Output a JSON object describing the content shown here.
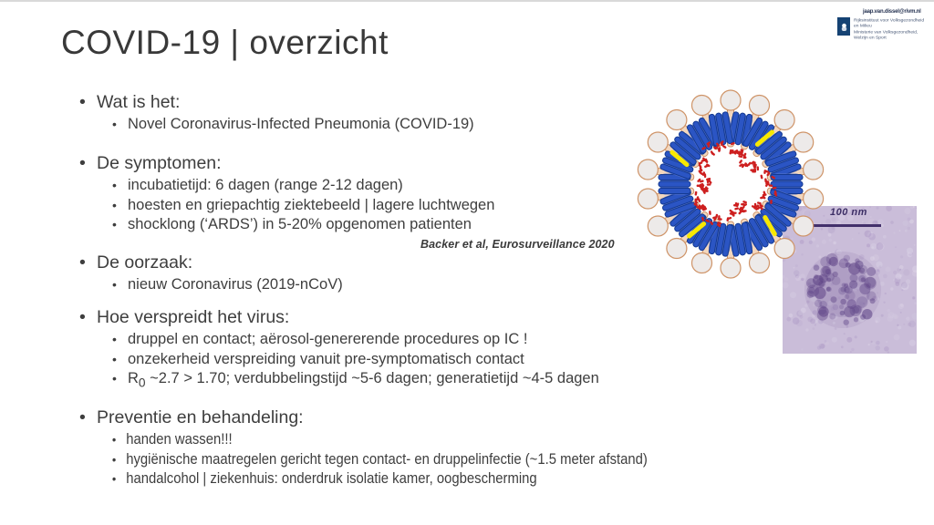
{
  "slide": {
    "title": "COVID-19 | overzicht",
    "citation": "Backer et al, Eurosurveillance 2020",
    "sections": [
      {
        "heading": "Wat is het:",
        "items": [
          "Novel Coronavirus-Infected Pneumonia (COVID-19)"
        ]
      },
      {
        "heading": "De symptomen:",
        "items": [
          "incubatietijd: 6 dagen (range 2-12 dagen)",
          "hoesten en griepachtig ziektebeeld | lagere luchtwegen",
          "shocklong (‘ARDS’) in 5-20% opgenomen patienten"
        ]
      },
      {
        "heading": "De oorzaak:",
        "items": [
          "nieuw Coronavirus (2019-nCoV)"
        ]
      },
      {
        "heading": "Hoe verspreidt het virus:",
        "items": [
          "druppel en contact; aërosol-genererende procedures op IC !",
          "onzekerheid verspreiding vanuit pre-symptomatisch contact",
          {
            "pre": "R",
            "sub": "0",
            "post": " ~2.7 > 1.70; verdubbelingstijd ~5-6 dagen; generatietijd ~4-5 dagen"
          }
        ]
      },
      {
        "heading": "Preventie en behandeling:",
        "items": [
          "handen wassen!!!",
          "hygiënische maatregelen gericht tegen contact-  en druppelinfectie (~1.5 meter afstand)",
          "handalcohol | ziekenhuis: onderdruk isolatie kamer, oogbescherming"
        ]
      }
    ]
  },
  "header": {
    "email": "jaap.van.dissel@rivm.nl",
    "logo_lines": [
      "Rijksinstituut voor Volksgezondheid",
      "en Milieu",
      "Ministerie van Volksgezondheid,",
      "Welzijn en Sport"
    ]
  },
  "figure": {
    "em_scale_label": "100 nm",
    "colors": {
      "membrane": "#f4dbc6",
      "outline": "#cf9468",
      "spike_stem": "#f2d6bd",
      "spike_head": "#edeae9",
      "m_blue": "#2b55c4",
      "m_blue_bg": "#5b76c8",
      "m_dark": "#143a92",
      "e_yellow": "#f8e800",
      "rna_red": "#cd1f1f",
      "em_base": "#cabdd9",
      "em_noise_dark": "#a18abd",
      "em_noise_light": "#e7e1ef",
      "em_dark": "#5e4386",
      "em_label": "#3d2f66"
    }
  }
}
